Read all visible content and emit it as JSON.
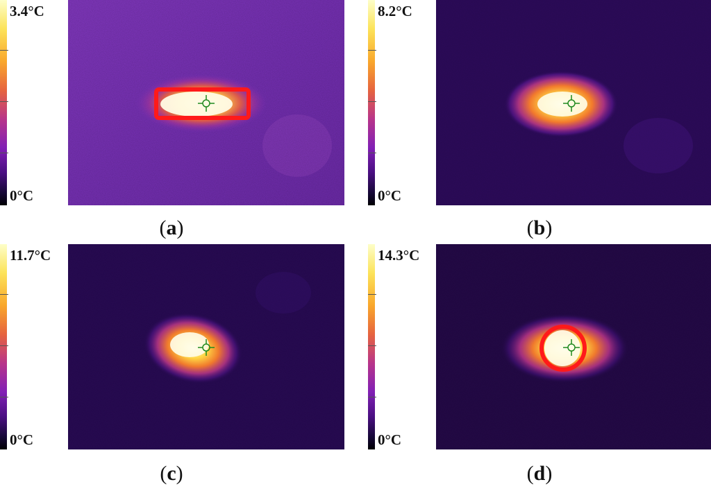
{
  "panels": [
    {
      "id": "a",
      "max_label": "3.4°C",
      "min_label": "0°C",
      "caption_open": "(",
      "caption_letter": "a",
      "caption_close": ")",
      "roi_shape": "rectangle"
    },
    {
      "id": "b",
      "max_label": "8.2°C",
      "min_label": "0°C",
      "caption_open": "(",
      "caption_letter": "b",
      "caption_close": ")",
      "roi_shape": "none"
    },
    {
      "id": "c",
      "max_label": "11.7°C",
      "min_label": "0°C",
      "caption_open": "(",
      "caption_letter": "c",
      "caption_close": ")",
      "roi_shape": "none"
    },
    {
      "id": "d",
      "max_label": "14.3°C",
      "min_label": "0°C",
      "caption_open": "(",
      "caption_letter": "d",
      "caption_close": ")",
      "roi_shape": "circle"
    }
  ],
  "colors": {
    "roi_outline": "#ff1a1a",
    "crosshair": "#1f8a1f",
    "hot_core": "#fffde8",
    "background_a": "#7a2fb8",
    "background_dark": "#2a0a55"
  },
  "colormap": "inferno"
}
